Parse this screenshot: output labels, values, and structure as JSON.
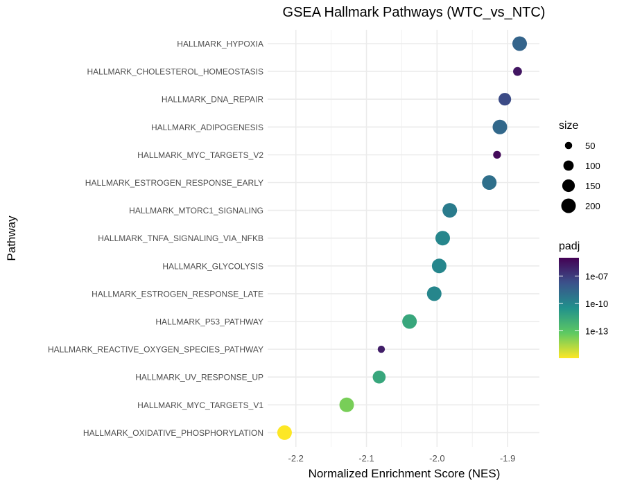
{
  "chart_data": {
    "type": "scatter",
    "title": "GSEA Hallmark Pathways (WTC_vs_NTC)",
    "xlabel": "Normalized Enrichment Score (NES)",
    "ylabel": "Pathway",
    "xlim": [
      -2.24,
      -1.855
    ],
    "x_ticks": [
      -2.2,
      -2.1,
      -2.0,
      -1.9
    ],
    "x_tick_labels": [
      "-2.2",
      "-2.1",
      "-2.0",
      "-1.9"
    ],
    "grid": true,
    "points": [
      {
        "pathway": "HALLMARK_HYPOXIA",
        "nes": -1.883,
        "size": 200,
        "padj": 3e-09
      },
      {
        "pathway": "HALLMARK_CHOLESTEROL_HOMEOSTASIS",
        "nes": -1.886,
        "size": 74,
        "padj": 2e-06
      },
      {
        "pathway": "HALLMARK_DNA_REPAIR",
        "nes": -1.904,
        "size": 150,
        "padj": 3e-08
      },
      {
        "pathway": "HALLMARK_ADIPOGENESIS",
        "nes": -1.911,
        "size": 200,
        "padj": 2e-09
      },
      {
        "pathway": "HALLMARK_MYC_TARGETS_V2",
        "nes": -1.915,
        "size": 58,
        "padj": 5e-06
      },
      {
        "pathway": "HALLMARK_ESTROGEN_RESPONSE_EARLY",
        "nes": -1.926,
        "size": 200,
        "padj": 1e-09
      },
      {
        "pathway": "HALLMARK_MTORC1_SIGNALING",
        "nes": -1.982,
        "size": 200,
        "padj": 3e-10
      },
      {
        "pathway": "HALLMARK_TNFA_SIGNALING_VIA_NFKB",
        "nes": -1.992,
        "size": 200,
        "padj": 1e-10
      },
      {
        "pathway": "HALLMARK_GLYCOLYSIS",
        "nes": -1.997,
        "size": 200,
        "padj": 1e-10
      },
      {
        "pathway": "HALLMARK_ESTROGEN_RESPONSE_LATE",
        "nes": -2.004,
        "size": 200,
        "padj": 1e-10
      },
      {
        "pathway": "HALLMARK_P53_PATHWAY",
        "nes": -2.039,
        "size": 200,
        "padj": 3e-12
      },
      {
        "pathway": "HALLMARK_REACTIVE_OXYGEN_SPECIES_PATHWAY",
        "nes": -2.079,
        "size": 49,
        "padj": 1e-06
      },
      {
        "pathway": "HALLMARK_UV_RESPONSE_UP",
        "nes": -2.082,
        "size": 158,
        "padj": 3e-12
      },
      {
        "pathway": "HALLMARK_MYC_TARGETS_V1",
        "nes": -2.128,
        "size": 200,
        "padj": 2e-14
      },
      {
        "pathway": "HALLMARK_OXIDATIVE_PHOSPHORYLATION",
        "nes": -2.216,
        "size": 200,
        "padj": 1e-16
      }
    ],
    "legend_size": {
      "title": "size",
      "entries": [
        {
          "label": "50",
          "value": 50
        },
        {
          "label": "100",
          "value": 100
        },
        {
          "label": "150",
          "value": 150
        },
        {
          "label": "200",
          "value": 200
        }
      ]
    },
    "legend_color": {
      "title": "padj",
      "scale": "log10",
      "range": [
        1e-16,
        1e-05
      ],
      "ticks": [
        {
          "label": "1e-07",
          "value": 1e-07
        },
        {
          "label": "1e-10",
          "value": 1e-10
        },
        {
          "label": "1e-13",
          "value": 1e-13
        }
      ],
      "colormap": "viridis",
      "colors": [
        "#fde725",
        "#5ec962",
        "#21918c",
        "#3b528b",
        "#440154"
      ]
    },
    "legend_placement": "right"
  }
}
